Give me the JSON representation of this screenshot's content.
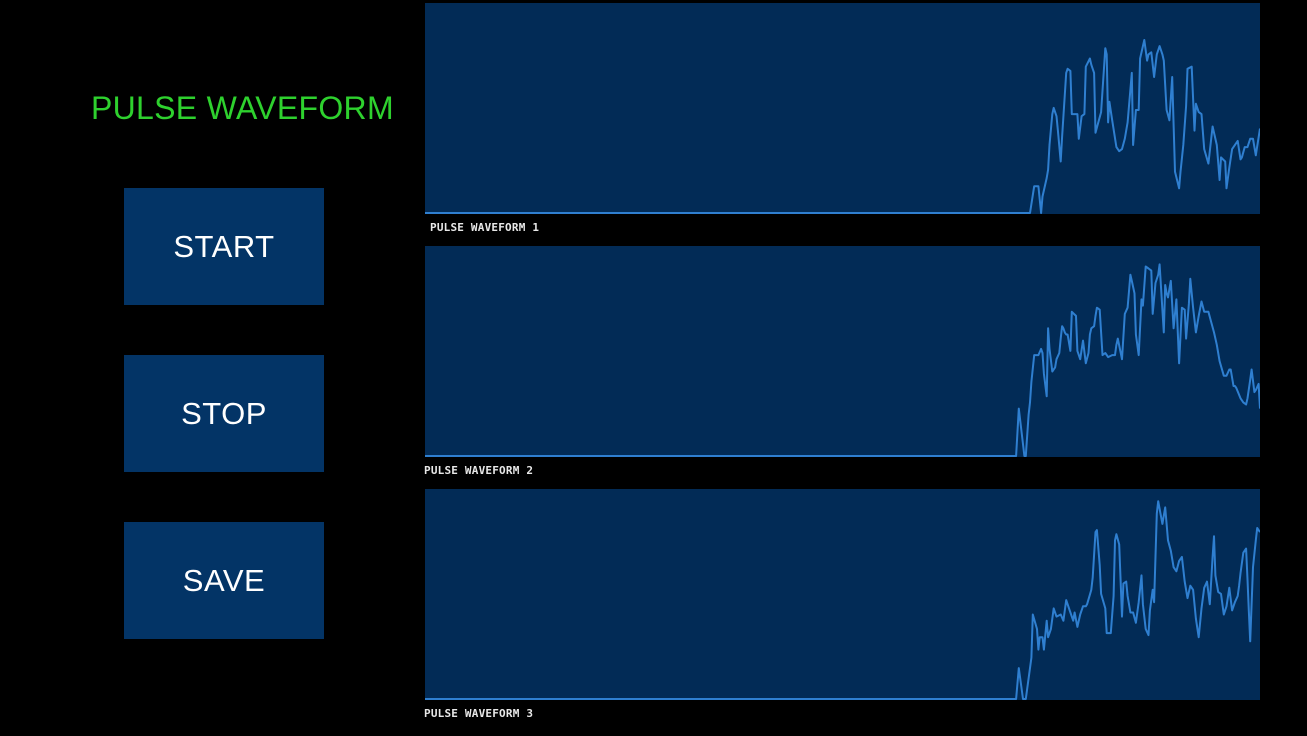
{
  "app": {
    "title": "PULSE WAVEFORM",
    "title_color": "#2ed12e"
  },
  "controls": {
    "start_label": "START",
    "stop_label": "STOP",
    "save_label": "SAVE",
    "button_color": "#033466"
  },
  "colors": {
    "background": "#000000",
    "panel": "#022b56",
    "trace": "#2f7fd0"
  },
  "waveforms": [
    {
      "label": "PULSE WAVEFORM 1",
      "ylim": [
        0,
        100
      ],
      "x": [
        0,
        433,
        434,
        437,
        440,
        442,
        443,
        446,
        447,
        448,
        450,
        451,
        453,
        454,
        456,
        457,
        460,
        461,
        463,
        464,
        468,
        469,
        471,
        473,
        474,
        477,
        478,
        480,
        481,
        485,
        488,
        489,
        490,
        491,
        493,
        496,
        498,
        500,
        502,
        504,
        507,
        508,
        510,
        512,
        513,
        516,
        518,
        519,
        521,
        523,
        525,
        527,
        529,
        530,
        532,
        534,
        536,
        538,
        541,
        542,
        544,
        546,
        547,
        550,
        552,
        553,
        555,
        557,
        559,
        562,
        564,
        565,
        568,
        570,
        571,
        574,
        575,
        577,
        579,
        583,
        585,
        586,
        588,
        590,
        592,
        594,
        596,
        599
      ],
      "y": [
        0,
        0,
        0,
        13,
        13,
        0,
        8,
        17,
        21,
        33,
        48,
        51,
        47,
        40,
        25,
        37,
        68,
        70,
        69,
        48,
        48,
        36,
        47,
        48,
        71,
        75,
        72,
        68,
        39,
        49,
        80,
        77,
        44,
        54,
        45,
        32,
        30,
        31,
        36,
        44,
        68,
        33,
        50,
        50,
        75,
        84,
        74,
        77,
        78,
        66,
        77,
        81,
        77,
        74,
        50,
        45,
        66,
        20,
        12,
        20,
        33,
        52,
        70,
        71,
        40,
        53,
        49,
        48,
        31,
        24,
        36,
        42,
        33,
        16,
        27,
        25,
        12,
        22,
        31,
        35,
        26,
        27,
        32,
        32,
        36,
        36,
        28,
        41
      ]
    },
    {
      "label": "PULSE WAVEFORM 2",
      "ylim": [
        0,
        100
      ],
      "x": [
        0,
        423,
        424,
        426,
        430,
        431,
        433,
        434,
        435,
        437,
        440,
        442,
        443,
        444,
        446,
        447,
        448,
        450,
        452,
        453,
        455,
        456,
        457,
        458,
        459,
        460,
        461,
        463,
        464,
        467,
        468,
        470,
        472,
        474,
        476,
        477,
        478,
        480,
        481,
        482,
        484,
        486,
        488,
        490,
        493,
        495,
        496,
        497,
        500,
        502,
        504,
        506,
        507,
        509,
        510,
        512,
        514,
        515,
        517,
        519,
        521,
        522,
        524,
        526,
        527,
        530,
        531,
        532,
        533,
        535,
        537,
        539,
        541,
        543,
        545,
        546,
        548,
        549,
        551,
        553,
        555,
        557,
        559,
        562,
        564,
        566,
        568,
        570,
        573,
        575,
        577,
        578,
        580,
        581,
        582,
        585,
        587,
        589,
        590,
        592,
        593,
        595,
        596,
        598,
        599
      ],
      "y": [
        0,
        0,
        0,
        23,
        0,
        0,
        20,
        26,
        36,
        49,
        49,
        52,
        50,
        40,
        29,
        62,
        52,
        41,
        43,
        47,
        50,
        57,
        63,
        62,
        60,
        59,
        59,
        51,
        70,
        68,
        51,
        47,
        56,
        45,
        50,
        59,
        62,
        63,
        68,
        72,
        71,
        49,
        50,
        48,
        49,
        49,
        54,
        57,
        47,
        69,
        72,
        88,
        85,
        79,
        59,
        49,
        76,
        73,
        92,
        91,
        90,
        69,
        84,
        88,
        93,
        60,
        83,
        79,
        77,
        85,
        62,
        76,
        45,
        72,
        71,
        57,
        74,
        86,
        72,
        60,
        68,
        75,
        70,
        70,
        65,
        60,
        54,
        46,
        39,
        39,
        42,
        42,
        34,
        34,
        33,
        28,
        26,
        25,
        28,
        37,
        42,
        31,
        32,
        35,
        23
      ]
    },
    {
      "label": "PULSE WAVEFORM 3",
      "ylim": [
        0,
        100
      ],
      "x": [
        0,
        423,
        424,
        426,
        429,
        431,
        433,
        435,
        436,
        439,
        440,
        441,
        443,
        444,
        446,
        447,
        449,
        451,
        453,
        456,
        458,
        460,
        463,
        465,
        466,
        468,
        470,
        472,
        474,
        475,
        478,
        479,
        481,
        482,
        484,
        485,
        488,
        489,
        492,
        494,
        495,
        496,
        498,
        500,
        501,
        503,
        504,
        506,
        508,
        510,
        512,
        514,
        515,
        517,
        519,
        520,
        522,
        523,
        525,
        526,
        529,
        531,
        533,
        535,
        537,
        539,
        541,
        543,
        545,
        547,
        549,
        551,
        553,
        555,
        557,
        559,
        561,
        563,
        565,
        566,
        567,
        569,
        571,
        573,
        575,
        577,
        579,
        581,
        583,
        584,
        585,
        587,
        589,
        590,
        591,
        592,
        594,
        596,
        597,
        599
      ],
      "y": [
        0,
        0,
        0,
        15,
        0,
        0,
        10,
        20,
        41,
        34,
        24,
        30,
        30,
        24,
        38,
        30,
        34,
        44,
        40,
        41,
        38,
        48,
        42,
        38,
        42,
        35,
        41,
        45,
        45,
        46,
        53,
        59,
        81,
        82,
        65,
        51,
        44,
        32,
        32,
        50,
        77,
        80,
        75,
        40,
        56,
        57,
        50,
        42,
        42,
        37,
        47,
        60,
        46,
        34,
        31,
        43,
        53,
        47,
        90,
        96,
        85,
        93,
        77,
        72,
        64,
        62,
        67,
        69,
        57,
        49,
        55,
        53,
        39,
        30,
        44,
        54,
        57,
        46,
        69,
        79,
        60,
        52,
        51,
        41,
        45,
        54,
        43,
        47,
        50,
        55,
        61,
        71,
        73,
        58,
        43,
        28,
        64,
        77,
        83,
        81
      ]
    }
  ]
}
